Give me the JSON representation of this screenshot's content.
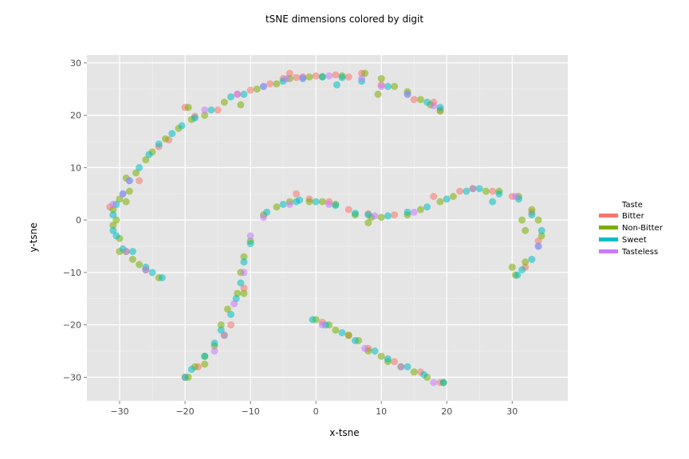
{
  "chart_data": {
    "type": "scatter",
    "title": "tSNE dimensions colored by digit",
    "xlabel": "x-tsne",
    "ylabel": "y-tsne",
    "xlim": [
      -35,
      38.5
    ],
    "ylim": [
      -34.5,
      31.5
    ],
    "xticks": [
      -30,
      -20,
      -10,
      0,
      10,
      20,
      30
    ],
    "yticks": [
      -30,
      -20,
      -10,
      0,
      10,
      20,
      30
    ],
    "xtick_labels": [
      "−30",
      "−20",
      "−10",
      "0",
      "10",
      "20",
      "30"
    ],
    "ytick_labels": [
      "−30",
      "−20",
      "−10",
      "0",
      "10",
      "20",
      "30"
    ],
    "grid": true,
    "legend": {
      "title": "Taste",
      "placement": "right",
      "entries": [
        {
          "name": "Bitter",
          "color": "#F8766D"
        },
        {
          "name": "Non-Bitter",
          "color": "#7CAE00"
        },
        {
          "name": "Sweet",
          "color": "#00BFC4"
        },
        {
          "name": "Tasteless",
          "color": "#C77CFF"
        }
      ]
    },
    "series": [
      {
        "name": "Bitter",
        "color": "#F8766D",
        "points": [
          [
            -31.5,
            2.5
          ],
          [
            -27,
            7.5
          ],
          [
            -20,
            21.5
          ],
          [
            -18.5,
            19.8
          ],
          [
            -15,
            21
          ],
          [
            -12,
            24
          ],
          [
            -10,
            24.8
          ],
          [
            -7,
            26
          ],
          [
            -5,
            27
          ],
          [
            -3,
            27.2
          ],
          [
            -4,
            28
          ],
          [
            -2,
            27.3
          ],
          [
            0,
            27.5
          ],
          [
            3,
            27.7
          ],
          [
            5,
            27.3
          ],
          [
            7,
            28
          ],
          [
            10,
            25.8
          ],
          [
            15,
            23
          ],
          [
            18,
            22.5
          ],
          [
            19,
            21
          ],
          [
            -3,
            5
          ],
          [
            -1,
            4
          ],
          [
            2,
            3.5
          ],
          [
            5,
            2
          ],
          [
            8,
            1.2
          ],
          [
            12,
            1
          ],
          [
            18,
            4.5
          ],
          [
            22,
            5.5
          ],
          [
            27,
            5.5
          ],
          [
            30,
            4.5
          ],
          [
            33,
            1.5
          ],
          [
            34,
            -4
          ],
          [
            32,
            -9
          ],
          [
            -22.5,
            15.3
          ],
          [
            -24,
            14
          ],
          [
            -11,
            -13
          ],
          [
            -13,
            -20
          ],
          [
            -18,
            -28
          ],
          [
            -20,
            -30
          ],
          [
            1,
            -19.5
          ],
          [
            5,
            -22
          ],
          [
            8,
            -24.5
          ],
          [
            12,
            -27
          ],
          [
            16,
            -29
          ],
          [
            19,
            -31
          ]
        ]
      },
      {
        "name": "Non-Bitter",
        "color": "#7CAE00",
        "points": [
          [
            -31,
            -1
          ],
          [
            -30,
            -6
          ],
          [
            -29,
            -6
          ],
          [
            -28,
            -7.5
          ],
          [
            -27,
            -8.5
          ],
          [
            -26,
            -9.5
          ],
          [
            -24,
            -11
          ],
          [
            -30,
            -3.5
          ],
          [
            -29,
            3.5
          ],
          [
            -28.5,
            5.5
          ],
          [
            -27.5,
            9
          ],
          [
            -26,
            11.5
          ],
          [
            -25,
            13
          ],
          [
            -23,
            15.5
          ],
          [
            -21,
            17.5
          ],
          [
            -19.5,
            21.5
          ],
          [
            -19,
            19.2
          ],
          [
            -17,
            20
          ],
          [
            -14,
            22.5
          ],
          [
            -11.5,
            22
          ],
          [
            -9,
            25
          ],
          [
            -6,
            26
          ],
          [
            -4,
            27
          ],
          [
            -1,
            27.3
          ],
          [
            1,
            27.4
          ],
          [
            4,
            27.5
          ],
          [
            7.5,
            28
          ],
          [
            9.5,
            24
          ],
          [
            10,
            27
          ],
          [
            12,
            25.5
          ],
          [
            14,
            24.5
          ],
          [
            16,
            23
          ],
          [
            17.5,
            22
          ],
          [
            19,
            20.8
          ],
          [
            -30.5,
            0
          ],
          [
            -31,
            2
          ],
          [
            -30,
            4
          ],
          [
            -29,
            8
          ],
          [
            -8,
            1
          ],
          [
            -6,
            2.5
          ],
          [
            -4,
            3.5
          ],
          [
            -1,
            3.5
          ],
          [
            1,
            3.5
          ],
          [
            3,
            3
          ],
          [
            6,
            1
          ],
          [
            8,
            -0.5
          ],
          [
            8.5,
            0.5
          ],
          [
            10,
            0.5
          ],
          [
            14,
            1
          ],
          [
            16,
            2
          ],
          [
            19,
            3.5
          ],
          [
            21,
            4.5
          ],
          [
            24,
            6
          ],
          [
            26,
            5.5
          ],
          [
            28,
            5.5
          ],
          [
            31,
            4.5
          ],
          [
            33,
            2
          ],
          [
            34,
            0
          ],
          [
            34.5,
            -3
          ],
          [
            32,
            -2
          ],
          [
            31.5,
            0
          ],
          [
            30,
            -9
          ],
          [
            30.5,
            -10.5
          ],
          [
            32,
            -8
          ],
          [
            -10,
            -4
          ],
          [
            -11,
            -7
          ],
          [
            -11.5,
            -10
          ],
          [
            -12,
            -14
          ],
          [
            -11,
            -14
          ],
          [
            -13.5,
            -17
          ],
          [
            -14.5,
            -20
          ],
          [
            -14,
            -22
          ],
          [
            -15.5,
            -24
          ],
          [
            -17,
            -26
          ],
          [
            -18.5,
            -28
          ],
          [
            -19.5,
            -30
          ],
          [
            -17,
            -27.5
          ],
          [
            0,
            -19
          ],
          [
            2,
            -20
          ],
          [
            3,
            -21
          ],
          [
            5,
            -22
          ],
          [
            6.5,
            -23
          ],
          [
            8,
            -25
          ],
          [
            10,
            -26
          ],
          [
            11,
            -27
          ],
          [
            13,
            -28
          ],
          [
            15,
            -29
          ],
          [
            17,
            -30
          ],
          [
            19.5,
            -31
          ]
        ]
      },
      {
        "name": "Sweet",
        "color": "#00BFC4",
        "points": [
          [
            -31,
            -2
          ],
          [
            -30.5,
            -3
          ],
          [
            -29.5,
            -5.5
          ],
          [
            -28,
            -6
          ],
          [
            -26,
            -9
          ],
          [
            -25,
            -10
          ],
          [
            -23.5,
            -11
          ],
          [
            -31,
            1
          ],
          [
            -30.5,
            3
          ],
          [
            -29.5,
            5
          ],
          [
            -28.5,
            7.5
          ],
          [
            -27,
            10
          ],
          [
            -25.5,
            12.5
          ],
          [
            -24,
            14.5
          ],
          [
            -22,
            16.5
          ],
          [
            -20.5,
            18
          ],
          [
            -18.5,
            19.5
          ],
          [
            -16,
            21
          ],
          [
            -13,
            23.5
          ],
          [
            -11,
            24
          ],
          [
            -8,
            25.5
          ],
          [
            -5,
            26.5
          ],
          [
            -2,
            27
          ],
          [
            1,
            27.3
          ],
          [
            3.2,
            25.8
          ],
          [
            4,
            27.2
          ],
          [
            7,
            26.5
          ],
          [
            11,
            25.5
          ],
          [
            14,
            24
          ],
          [
            17,
            22.5
          ],
          [
            19,
            21.5
          ],
          [
            -7.5,
            1.5
          ],
          [
            -5,
            3
          ],
          [
            -2.5,
            3.8
          ],
          [
            0,
            3.5
          ],
          [
            3,
            2.8
          ],
          [
            6,
            1.3
          ],
          [
            8,
            1
          ],
          [
            11,
            0.8
          ],
          [
            14,
            1.5
          ],
          [
            17,
            2.5
          ],
          [
            20,
            4
          ],
          [
            23,
            5.5
          ],
          [
            25,
            6
          ],
          [
            27,
            3.5
          ],
          [
            28,
            5
          ],
          [
            31,
            4
          ],
          [
            33,
            1
          ],
          [
            34.5,
            -2
          ],
          [
            34,
            -5
          ],
          [
            33,
            -7.5
          ],
          [
            31.5,
            -9.5
          ],
          [
            30.8,
            -10.5
          ],
          [
            -10,
            -4.5
          ],
          [
            -11,
            -8
          ],
          [
            -11.5,
            -12
          ],
          [
            -12.2,
            -15
          ],
          [
            -13,
            -18
          ],
          [
            -14.5,
            -21
          ],
          [
            -15.5,
            -23.5
          ],
          [
            -17,
            -26
          ],
          [
            -19,
            -28.5
          ],
          [
            -20,
            -30
          ],
          [
            -0.5,
            -19
          ],
          [
            1.5,
            -20
          ],
          [
            4,
            -21.5
          ],
          [
            6,
            -23
          ],
          [
            9,
            -25
          ],
          [
            11,
            -26.5
          ],
          [
            14,
            -28
          ],
          [
            16.5,
            -29.5
          ],
          [
            19.5,
            -31
          ],
          [
            -3,
            3.5
          ]
        ]
      },
      {
        "name": "Tasteless",
        "color": "#C77CFF",
        "points": [
          [
            -31,
            3
          ],
          [
            -29.5,
            5
          ],
          [
            -28.5,
            7.5
          ],
          [
            -29,
            -6
          ],
          [
            -26,
            -9.5
          ],
          [
            -17,
            21
          ],
          [
            -12,
            24
          ],
          [
            -8,
            25.5
          ],
          [
            -4.5,
            27
          ],
          [
            -2,
            27.2
          ],
          [
            2,
            27.5
          ],
          [
            7,
            27
          ],
          [
            10,
            25.5
          ],
          [
            14,
            24
          ],
          [
            18,
            21.8
          ],
          [
            -8,
            0.5
          ],
          [
            -4,
            3
          ],
          [
            2,
            3
          ],
          [
            9,
            0.8
          ],
          [
            15,
            1.5
          ],
          [
            24,
            6
          ],
          [
            30.5,
            4.5
          ],
          [
            34,
            -5
          ],
          [
            -10,
            -3
          ],
          [
            -11,
            -10
          ],
          [
            -12.5,
            -16
          ],
          [
            -14,
            -22
          ],
          [
            -15.5,
            -25
          ],
          [
            1,
            -20
          ],
          [
            7.5,
            -24.5
          ],
          [
            13,
            -28
          ],
          [
            18,
            -31
          ]
        ]
      }
    ]
  }
}
